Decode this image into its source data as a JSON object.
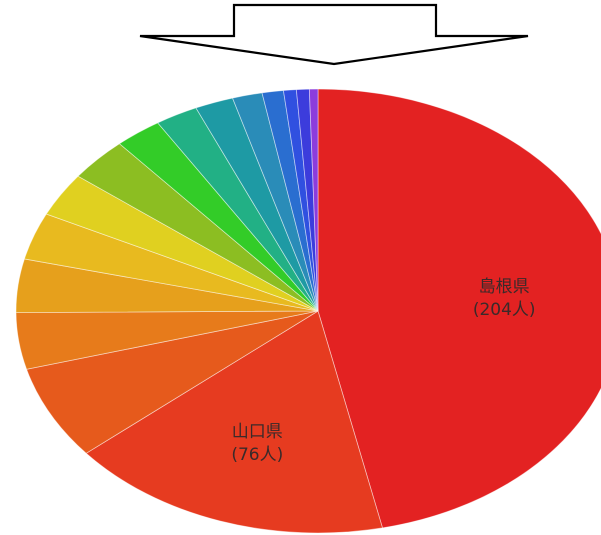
{
  "chart_data": {
    "type": "pie",
    "start": "12 o'clock",
    "direction": "clockwise",
    "slices": [
      {
        "label": "島根県",
        "value": 204,
        "display": "(204人)",
        "color": "#e32222"
      },
      {
        "label": "山口県",
        "value": 76,
        "display": "(76人)",
        "color": "#e63b20"
      },
      {
        "label": "",
        "value": 30,
        "color": "#e65a1c"
      },
      {
        "label": "",
        "value": 18,
        "color": "#e77b1b"
      },
      {
        "label": "",
        "value": 17,
        "color": "#e6a01c"
      },
      {
        "label": "",
        "value": 15,
        "color": "#e8ba1f"
      },
      {
        "label": "",
        "value": 14,
        "color": "#e0d020"
      },
      {
        "label": "",
        "value": 14,
        "color": "#8cbe22"
      },
      {
        "label": "",
        "value": 11,
        "color": "#33cc28"
      },
      {
        "label": "",
        "value": 10,
        "color": "#22b085"
      },
      {
        "label": "",
        "value": 9,
        "color": "#1e9aa4"
      },
      {
        "label": "",
        "value": 7,
        "color": "#2a8cb8"
      },
      {
        "label": "",
        "value": 5,
        "color": "#2a6ed0"
      },
      {
        "label": "",
        "value": 3,
        "color": "#3050e0"
      },
      {
        "label": "",
        "value": 3,
        "color": "#3c3cdc"
      },
      {
        "label": "",
        "value": 2,
        "color": "#8c3cdc"
      }
    ]
  },
  "arrow": {
    "icon": "down-arrow-icon",
    "stroke": "#000000",
    "fill": "#ffffff"
  }
}
